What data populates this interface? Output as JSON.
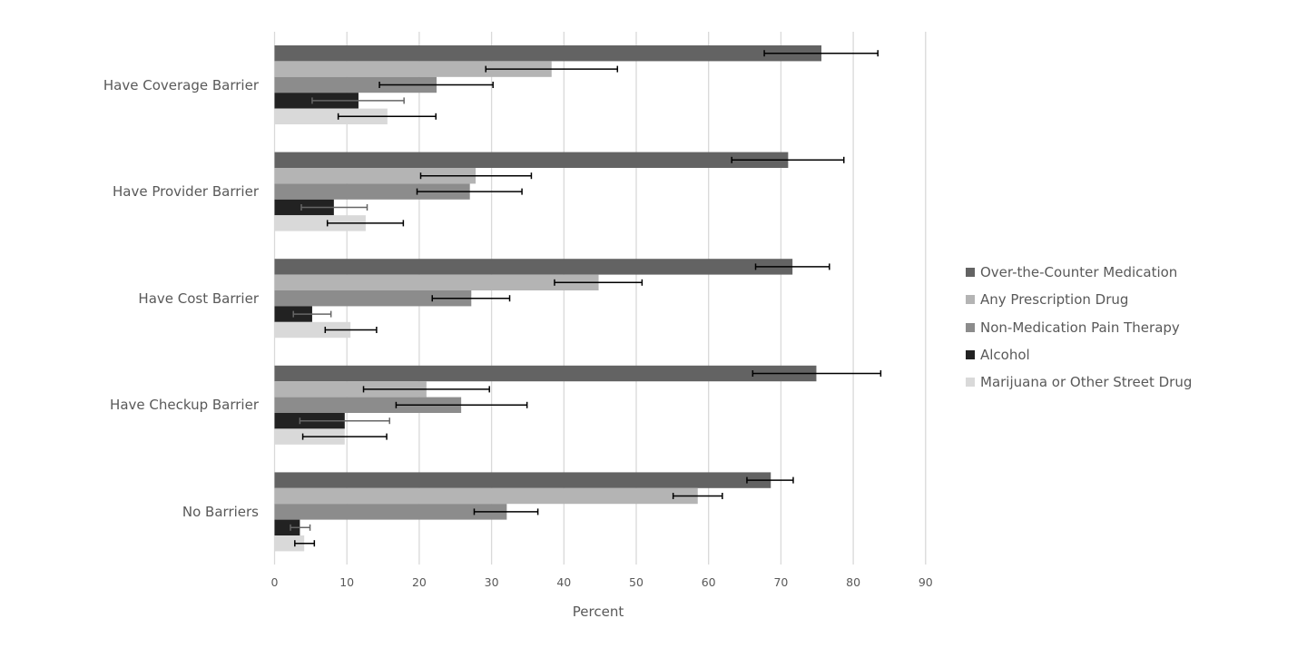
{
  "chart_data": {
    "type": "bar",
    "orientation": "horizontal",
    "title": "",
    "xlabel": "Percent",
    "ylabel": "",
    "xlim": [
      0,
      90
    ],
    "xticks": [
      0,
      10,
      20,
      30,
      40,
      50,
      60,
      70,
      80,
      90
    ],
    "grid": true,
    "legend_position": "right",
    "categories": [
      "Have Coverage Barrier",
      "Have Provider Barrier",
      "Have Cost Barrier",
      "Have Checkup Barrier",
      "No Barriers"
    ],
    "series": [
      {
        "name": "Over-the-Counter Medication",
        "color": "#636363",
        "error_color": "#000000",
        "values": [
          75.6,
          71.0,
          71.6,
          74.9,
          68.6
        ],
        "error_low": [
          67.7,
          63.2,
          66.5,
          66.1,
          65.3
        ],
        "error_high": [
          83.4,
          78.7,
          76.7,
          83.8,
          71.7
        ]
      },
      {
        "name": "Any Prescription Drug",
        "color": "#b4b4b4",
        "error_color": "#000000",
        "values": [
          38.3,
          27.8,
          44.8,
          21.0,
          58.5
        ],
        "error_low": [
          29.2,
          20.2,
          38.7,
          12.3,
          55.1
        ],
        "error_high": [
          47.4,
          35.5,
          50.8,
          29.7,
          61.9
        ]
      },
      {
        "name": "Non-Medication Pain Therapy",
        "color": "#8c8c8c",
        "error_color": "#000000",
        "values": [
          22.4,
          27.0,
          27.2,
          25.8,
          32.1
        ],
        "error_low": [
          14.5,
          19.7,
          21.8,
          16.8,
          27.6
        ],
        "error_high": [
          30.2,
          34.2,
          32.5,
          34.9,
          36.4
        ]
      },
      {
        "name": "Alcohol",
        "color": "#222222",
        "error_color": "#666666",
        "values": [
          11.6,
          8.2,
          5.2,
          9.7,
          3.5
        ],
        "error_low": [
          5.2,
          3.7,
          2.6,
          3.5,
          2.2
        ],
        "error_high": [
          17.9,
          12.8,
          7.8,
          15.9,
          4.9
        ]
      },
      {
        "name": "Marijuana or Other Street Drug",
        "color": "#d9d9d9",
        "error_color": "#000000",
        "values": [
          15.6,
          12.6,
          10.5,
          9.7,
          4.1
        ],
        "error_low": [
          8.8,
          7.3,
          7.0,
          3.9,
          2.8
        ],
        "error_high": [
          22.3,
          17.8,
          14.1,
          15.5,
          5.5
        ]
      }
    ]
  }
}
